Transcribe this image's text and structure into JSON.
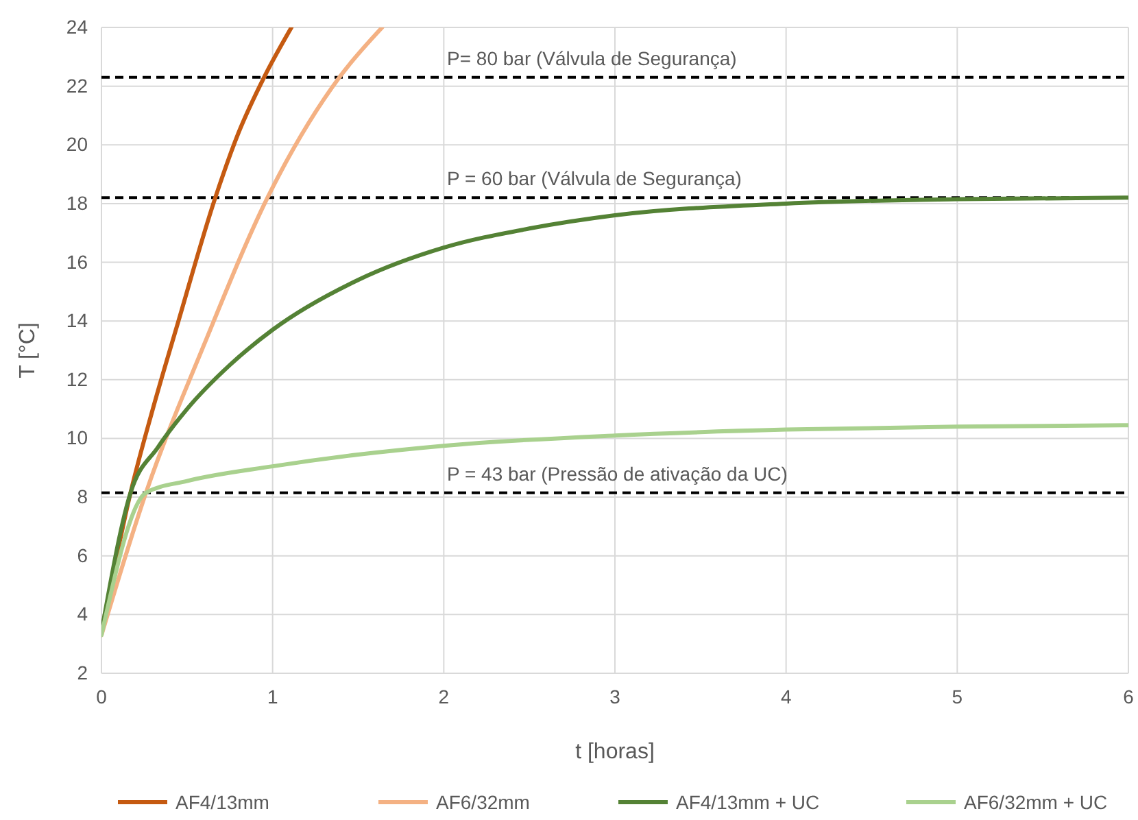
{
  "chart_data": {
    "type": "line",
    "xlabel": "t [horas]",
    "ylabel": "T [°C]",
    "xlim": [
      0,
      6
    ],
    "xticks": [
      0,
      1,
      2,
      3,
      4,
      5,
      6
    ],
    "ylim": [
      2,
      24
    ],
    "yticks": [
      2,
      4,
      6,
      8,
      10,
      12,
      14,
      16,
      18,
      20,
      22,
      24
    ],
    "grid": true,
    "legend": "bottom",
    "marker": "none",
    "line_style": "solid",
    "series": [
      {
        "name": "AF4/13mm",
        "color": "#c55a11",
        "x": [
          0,
          0.17,
          0.3,
          0.45,
          0.665,
          0.8,
          0.95,
          1.11
        ],
        "values": [
          3.4,
          8.15,
          11,
          14,
          18.2,
          20.4,
          22.3,
          24
        ]
      },
      {
        "name": "AF6/32mm",
        "color": "#f4b183",
        "x": [
          0,
          0.26,
          0.6,
          0.97,
          1.39,
          1.64
        ],
        "values": [
          3.3,
          8.15,
          13.2,
          18.2,
          22.3,
          24
        ]
      },
      {
        "name": "AF4/13mm + UC",
        "color": "#548235",
        "x": [
          0,
          0.17,
          0.33,
          0.5,
          0.75,
          1,
          1.5,
          2,
          2.5,
          3,
          4,
          5,
          6
        ],
        "values": [
          3.4,
          8.15,
          9.7,
          11,
          12.5,
          13.7,
          15.4,
          16.5,
          17.15,
          17.6,
          18,
          18.15,
          18.2
        ]
      },
      {
        "name": "AF6/32mm + UC",
        "color": "#a9d18e",
        "x": [
          0,
          0.26,
          0.5,
          1,
          1.5,
          2,
          3,
          4,
          5,
          6
        ],
        "values": [
          3.3,
          8.15,
          8.55,
          9.05,
          9.45,
          9.75,
          10.1,
          10.3,
          10.4,
          10.45
        ]
      }
    ],
    "ref_lines": [
      {
        "axis": "y",
        "value": 22.3,
        "color": "#000000",
        "line_style": "dashed"
      },
      {
        "axis": "y",
        "value": 18.2,
        "color": "#000000",
        "line_style": "dashed"
      },
      {
        "axis": "y",
        "value": 8.15,
        "color": "#000000",
        "line_style": "dashed"
      }
    ],
    "annotations": [
      {
        "text": "P= 80 bar (Válvula de Segurança)",
        "y": 22.3
      },
      {
        "text": "P = 60 bar (Válvula de Segurança)",
        "y": 18.2
      },
      {
        "text": "P = 43 bar (Pressão de ativação da UC)",
        "y": 8.15
      }
    ]
  }
}
